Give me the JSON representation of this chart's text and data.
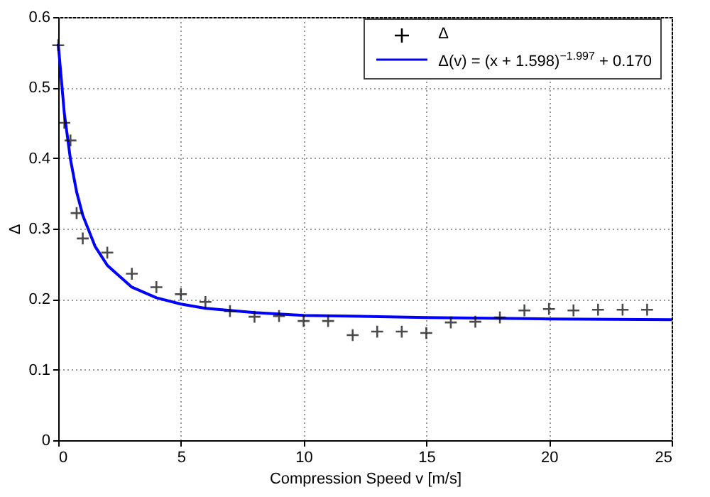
{
  "chart_data": {
    "type": "scatter",
    "xlabel": "Compression Speed v [m/s]",
    "ylabel": "Δ",
    "xlim": [
      0,
      25
    ],
    "ylim": [
      0,
      0.6
    ],
    "xticks": [
      0,
      5,
      10,
      15,
      20,
      25
    ],
    "yticks": [
      0,
      0.1,
      0.2,
      0.3,
      0.4,
      0.5,
      0.6
    ],
    "grid": true,
    "legend": "top right",
    "series": [
      {
        "name": "Δ",
        "color": "#000000",
        "marker": "cross",
        "x": [
          0,
          0.25,
          0.5,
          0.75,
          1,
          2,
          3,
          4,
          5,
          6,
          7,
          8,
          9,
          10,
          11,
          12,
          13,
          14,
          15,
          16,
          17,
          18,
          19,
          20,
          21,
          22,
          23,
          24
        ],
        "values": [
          0.56,
          0.45,
          0.425,
          0.322,
          0.286,
          0.266,
          0.236,
          0.217,
          0.207,
          0.196,
          0.183,
          0.175,
          0.176,
          0.169,
          0.169,
          0.149,
          0.154,
          0.154,
          0.152,
          0.167,
          0.168,
          0.174,
          0.184,
          0.186,
          0.184,
          0.185,
          0.185,
          0.185
        ]
      },
      {
        "name": "Δ(v) = (x + 1.598)$^{−1.997}$ + 0.170",
        "type": "line",
        "line_style": "solid",
        "color": "#0000ff",
        "x": [
          0,
          0.25,
          0.5,
          0.75,
          1,
          1.5,
          2,
          3,
          4,
          5,
          6,
          8,
          10,
          15,
          20,
          25
        ],
        "values": [
          0.562,
          0.463,
          0.398,
          0.352,
          0.319,
          0.275,
          0.248,
          0.217,
          0.202,
          0.193,
          0.187,
          0.181,
          0.177,
          0.174,
          0.172,
          0.171
        ]
      }
    ]
  }
}
